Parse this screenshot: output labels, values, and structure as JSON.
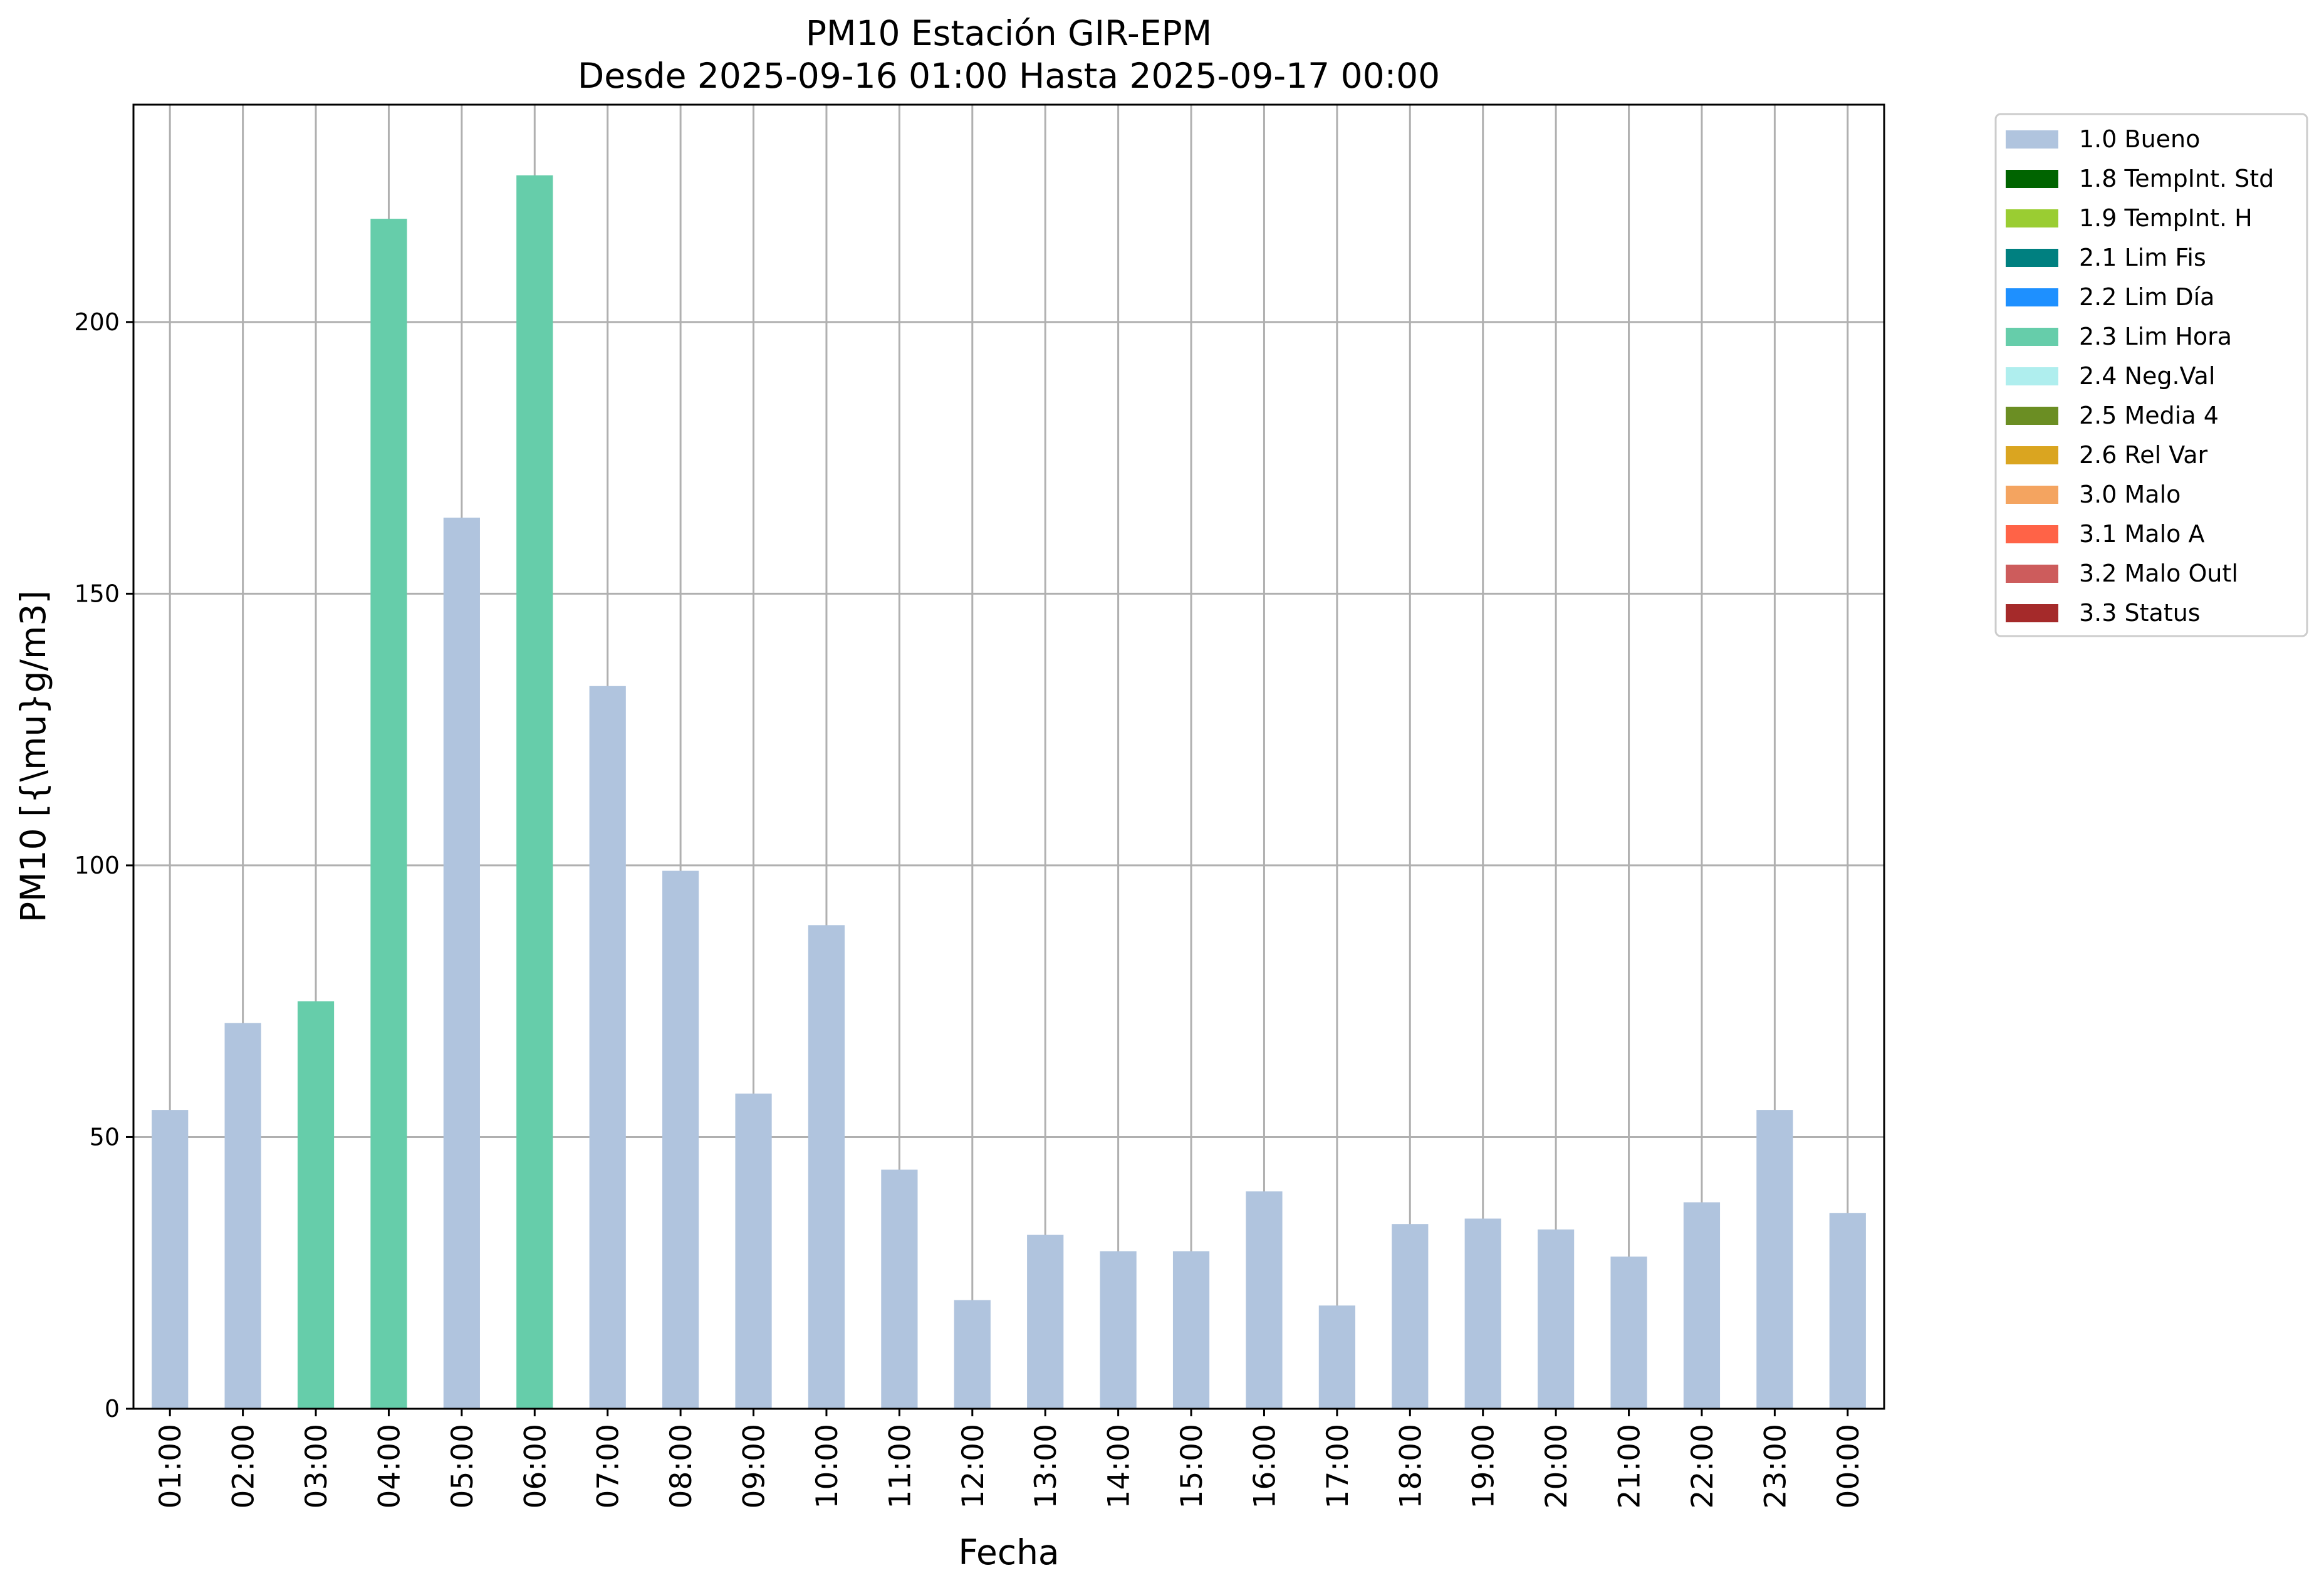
{
  "chart_data": {
    "type": "bar",
    "title": "PM10 Estación GIR-EPM",
    "subtitle": "Desde 2025-09-16 01:00 Hasta 2025-09-17 00:00",
    "xlabel": "Fecha",
    "ylabel": "PM10 [{\\mu}g/m3]",
    "ylim": [
      0,
      240
    ],
    "yticks": [
      0,
      50,
      100,
      150,
      200
    ],
    "grid": true,
    "legend_position": "outside-top-right",
    "categories": [
      "01:00",
      "02:00",
      "03:00",
      "04:00",
      "05:00",
      "06:00",
      "07:00",
      "08:00",
      "09:00",
      "10:00",
      "11:00",
      "12:00",
      "13:00",
      "14:00",
      "15:00",
      "16:00",
      "17:00",
      "18:00",
      "19:00",
      "20:00",
      "21:00",
      "22:00",
      "23:00",
      "00:00"
    ],
    "values": [
      55,
      71,
      75,
      219,
      164,
      227,
      133,
      99,
      58,
      89,
      44,
      20,
      32,
      29,
      29,
      40,
      19,
      34,
      35,
      33,
      28,
      38,
      55,
      36
    ],
    "flags": [
      "1.0 Bueno",
      "1.0 Bueno",
      "2.3 Lim Hora",
      "2.3 Lim Hora",
      "1.0 Bueno",
      "2.3 Lim Hora",
      "1.0 Bueno",
      "1.0 Bueno",
      "1.0 Bueno",
      "1.0 Bueno",
      "1.0 Bueno",
      "1.0 Bueno",
      "1.0 Bueno",
      "1.0 Bueno",
      "1.0 Bueno",
      "1.0 Bueno",
      "1.0 Bueno",
      "1.0 Bueno",
      "1.0 Bueno",
      "1.0 Bueno",
      "1.0 Bueno",
      "1.0 Bueno",
      "1.0 Bueno",
      "1.0 Bueno"
    ],
    "legend": [
      {
        "label": "1.0 Bueno",
        "color": "#b0c4de"
      },
      {
        "label": "1.8 TempInt. Std",
        "color": "#006400"
      },
      {
        "label": "1.9 TempInt. H",
        "color": "#9acd32"
      },
      {
        "label": "2.1 Lim Fis",
        "color": "#008080"
      },
      {
        "label": "2.2 Lim Día",
        "color": "#1e90ff"
      },
      {
        "label": "2.3 Lim Hora",
        "color": "#66cdaa"
      },
      {
        "label": "2.4 Neg.Val",
        "color": "#afeeee"
      },
      {
        "label": "2.5 Media 4",
        "color": "#6b8e23"
      },
      {
        "label": "2.6 Rel Var",
        "color": "#daa520"
      },
      {
        "label": "3.0 Malo",
        "color": "#f4a460"
      },
      {
        "label": "3.1 Malo A",
        "color": "#ff6347"
      },
      {
        "label": "3.2 Malo Outl",
        "color": "#cd5c5c"
      },
      {
        "label": "3.3 Status",
        "color": "#a52a2a"
      }
    ]
  }
}
